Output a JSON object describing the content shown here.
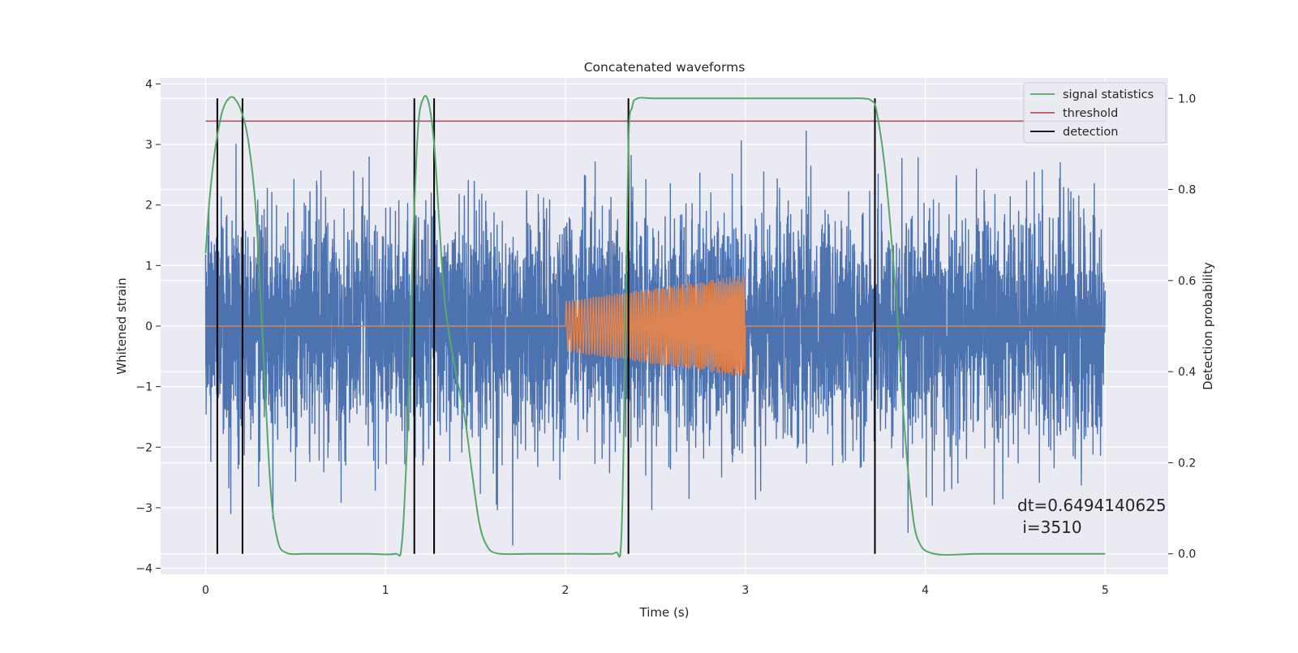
{
  "chart_data": {
    "type": "line",
    "title": "Concatenated waveforms",
    "xlabel": "Time (s)",
    "ylabel": "Whitened strain",
    "y2label": "Detection probability",
    "xlim": [
      -0.25,
      5.35
    ],
    "ylim": [
      -4.1,
      4.1
    ],
    "y2lim": [
      -0.045,
      1.045
    ],
    "x_ticks": [
      0,
      1,
      2,
      3,
      4,
      5
    ],
    "y_ticks": [
      -4,
      -3,
      -2,
      -1,
      0,
      1,
      2,
      3,
      4
    ],
    "y2_ticks": [
      0.0,
      0.2,
      0.4,
      0.6,
      0.8,
      1.0
    ],
    "grid": true,
    "legend_position": "top-right",
    "colors": {
      "background": "#eaeaf2",
      "grid": "#ffffff",
      "noise": "#4c72b0",
      "injection": "#dd8452",
      "signal_statistics": "#55a868",
      "threshold": "#c44e52",
      "detection": "#000000"
    },
    "series": [
      {
        "name": "",
        "axis": "left",
        "color": "#4c72b0",
        "description_kind": "whitened-noise",
        "x_range": [
          0,
          5
        ],
        "amplitude_typical": 1.4,
        "amplitude_peak": 3.7
      },
      {
        "name": "",
        "axis": "left",
        "color": "#dd8452",
        "description_kind": "chirp-injection",
        "x_range": [
          0,
          5
        ],
        "chirp_start": 2.0,
        "chirp_end": 3.0,
        "amplitude_start": 0.42,
        "amplitude_end": 0.85
      },
      {
        "name": "signal statistics",
        "axis": "right",
        "color": "#55a868",
        "x": [
          0.0,
          0.02,
          0.05,
          0.08,
          0.1,
          0.13,
          0.16,
          0.2,
          0.24,
          0.28,
          0.32,
          0.36,
          0.4,
          0.45,
          0.55,
          0.7,
          0.9,
          1.05,
          1.09,
          1.12,
          1.15,
          1.18,
          1.21,
          1.24,
          1.27,
          1.3,
          1.33,
          1.38,
          1.44,
          1.48,
          1.52,
          1.56,
          1.62,
          1.8,
          2.0,
          2.2,
          2.28,
          2.31,
          2.33,
          2.35,
          2.37,
          2.4,
          2.5,
          2.8,
          3.2,
          3.55,
          3.65,
          3.7,
          3.73,
          3.78,
          3.84,
          3.88,
          3.92,
          3.96,
          4.05,
          4.3,
          4.6,
          5.0
        ],
        "values": [
          0.66,
          0.77,
          0.88,
          0.95,
          0.98,
          1.0,
          1.0,
          0.97,
          0.9,
          0.75,
          0.45,
          0.15,
          0.03,
          0.002,
          0.0,
          0.0,
          0.0,
          0.0,
          0.02,
          0.25,
          0.65,
          0.93,
          1.0,
          0.99,
          0.9,
          0.72,
          0.55,
          0.42,
          0.3,
          0.18,
          0.07,
          0.02,
          0.001,
          0.0,
          0.0,
          0.0,
          0.003,
          0.03,
          0.4,
          0.9,
          0.98,
          1.0,
          1.0,
          1.0,
          1.0,
          1.0,
          1.0,
          0.995,
          0.97,
          0.83,
          0.55,
          0.3,
          0.12,
          0.03,
          0.0,
          0.0,
          0.0,
          0.0
        ]
      },
      {
        "name": "threshold",
        "axis": "right",
        "color": "#c44e52",
        "x": [
          0,
          5
        ],
        "values": [
          0.95,
          0.95
        ]
      },
      {
        "name": "detection",
        "axis": "right",
        "color": "#000000",
        "x_positions": [
          0.065,
          0.205,
          1.16,
          1.27,
          2.35,
          3.72
        ],
        "ymin": 0,
        "ymax": 1
      }
    ],
    "legend_entries": [
      "signal statistics",
      "threshold",
      "detection"
    ],
    "annotation": {
      "line1": "dt=0.6494140625",
      "line2": " i=3510"
    }
  }
}
